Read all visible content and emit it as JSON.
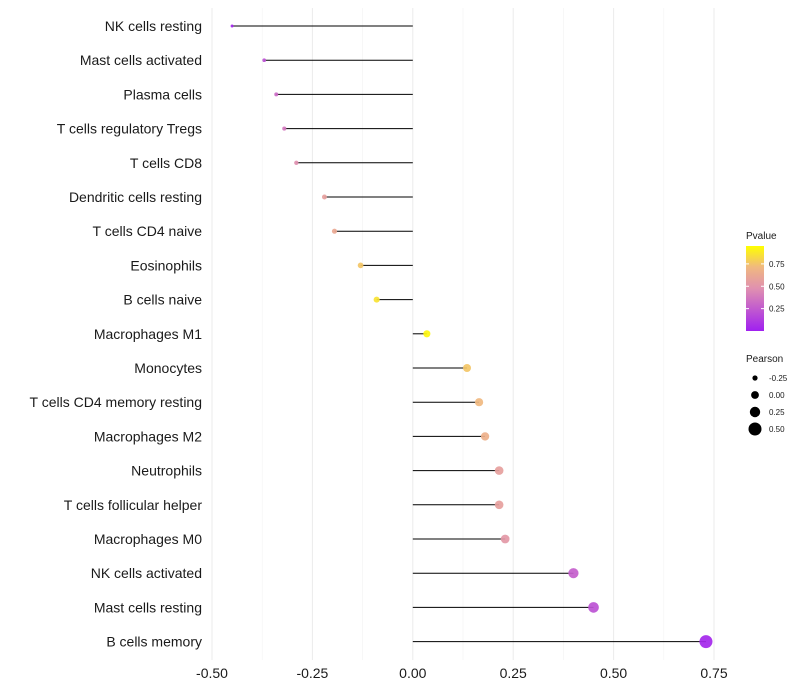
{
  "chart_data": {
    "type": "lollipop",
    "title": "",
    "xlabel": "",
    "ylabel": "",
    "xlim": [
      -0.5,
      0.75
    ],
    "x_ticks": [
      -0.5,
      -0.25,
      0.0,
      0.25,
      0.5,
      0.75
    ],
    "x_tick_labels": [
      "-0.50",
      "-0.25",
      "0.00",
      "0.25",
      "0.50",
      "0.75"
    ],
    "grid": true,
    "points": [
      {
        "category": "NK cells resting",
        "pearson": -0.45,
        "pvalue": 0.02
      },
      {
        "category": "Mast cells activated",
        "pearson": -0.37,
        "pvalue": 0.2
      },
      {
        "category": "Plasma cells",
        "pearson": -0.34,
        "pvalue": 0.3
      },
      {
        "category": "T cells regulatory  Tregs",
        "pearson": -0.32,
        "pvalue": 0.35
      },
      {
        "category": "T cells CD8",
        "pearson": -0.29,
        "pvalue": 0.45
      },
      {
        "category": "Dendritic cells resting",
        "pearson": -0.22,
        "pvalue": 0.55
      },
      {
        "category": "T cells CD4 naive",
        "pearson": -0.195,
        "pvalue": 0.6
      },
      {
        "category": "Eosinophils",
        "pearson": -0.13,
        "pvalue": 0.75
      },
      {
        "category": "B cells naive",
        "pearson": -0.09,
        "pvalue": 0.85
      },
      {
        "category": "Macrophages M1",
        "pearson": 0.035,
        "pvalue": 0.92
      },
      {
        "category": "Monocytes",
        "pearson": 0.135,
        "pvalue": 0.75
      },
      {
        "category": "T cells CD4 memory resting",
        "pearson": 0.165,
        "pvalue": 0.7
      },
      {
        "category": "Macrophages M2",
        "pearson": 0.18,
        "pvalue": 0.65
      },
      {
        "category": "Neutrophils",
        "pearson": 0.215,
        "pvalue": 0.55
      },
      {
        "category": "T cells follicular helper",
        "pearson": 0.215,
        "pvalue": 0.55
      },
      {
        "category": "Macrophages M0",
        "pearson": 0.23,
        "pvalue": 0.5
      },
      {
        "category": "NK cells activated",
        "pearson": 0.4,
        "pvalue": 0.25
      },
      {
        "category": "Mast cells resting",
        "pearson": 0.45,
        "pvalue": 0.2
      },
      {
        "category": "B cells memory",
        "pearson": 0.73,
        "pvalue": 0.03
      }
    ],
    "legend_pvalue": {
      "title": "Pvalue",
      "range": [
        0.0,
        0.95
      ],
      "ticks": [
        0.75,
        0.5,
        0.25
      ],
      "tick_labels": [
        "0.75",
        "0.50",
        "0.25"
      ],
      "low_color": "#a020f0",
      "mid_color": "#e8a0a0",
      "high_color": "#ffff00"
    },
    "legend_pearson": {
      "title": "Pearson",
      "values": [
        -0.25,
        0.0,
        0.25,
        0.5
      ],
      "labels": [
        "-0.25",
        "0.00",
        "0.25",
        "0.50"
      ]
    },
    "colors": {
      "grid": "#ebebeb",
      "stem": "#000000",
      "text": "#1a1a1a"
    }
  }
}
